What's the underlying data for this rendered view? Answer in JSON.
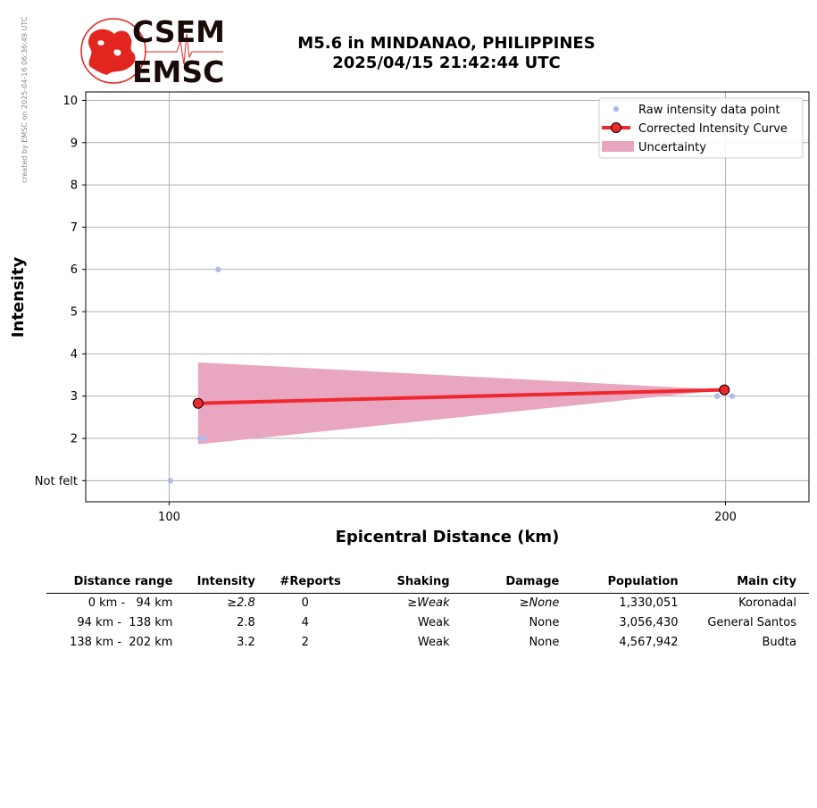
{
  "credit": "created by EMSC on 2025-04-16 06:36:49 UTC",
  "logo": {
    "line1": "CSEM",
    "line2": "EMSC"
  },
  "title": {
    "line1": "M5.6 in MINDANAO, PHILIPPINES",
    "line2": "2025/04/15 21:42:44 UTC"
  },
  "colors": {
    "raw": "#aebde6",
    "curve": "#f0282e",
    "uncertainty": "#e8a6c0",
    "logo": "#e3251f"
  },
  "chart_data": {
    "type": "line",
    "xlabel": "Epicentral Distance (km)",
    "ylabel": "Intensity",
    "xlim": [
      85,
      215
    ],
    "ylim": [
      0.5,
      10.2
    ],
    "xticks": [
      {
        "value": 100,
        "label": "100"
      },
      {
        "value": 200,
        "label": "200"
      }
    ],
    "yticks": [
      {
        "value": 1,
        "label": "Not felt"
      },
      {
        "value": 2,
        "label": "2"
      },
      {
        "value": 3,
        "label": "3"
      },
      {
        "value": 4,
        "label": "4"
      },
      {
        "value": 5,
        "label": "5"
      },
      {
        "value": 6,
        "label": "6"
      },
      {
        "value": 7,
        "label": "7"
      },
      {
        "value": 8,
        "label": "8"
      },
      {
        "value": 9,
        "label": "9"
      },
      {
        "value": 10,
        "label": "10"
      }
    ],
    "grid": true,
    "legend_position": "top-right",
    "raw_points": {
      "name": "Raw intensity data point",
      "x": [
        100.2,
        105.6,
        106.2,
        108.8,
        198.5,
        201.2
      ],
      "y": [
        1,
        2,
        2,
        6,
        3,
        3
      ]
    },
    "curve": {
      "name": "Corrected Intensity Curve",
      "x": [
        105.2,
        199.8
      ],
      "y": [
        2.83,
        3.15
      ]
    },
    "uncertainty": {
      "name": "Uncertainty",
      "x": [
        105.2,
        199.8
      ],
      "upper": [
        3.8,
        3.15
      ],
      "lower": [
        1.86,
        3.15
      ]
    }
  },
  "table": {
    "headers": [
      "Distance range",
      "Intensity",
      "#Reports",
      "Shaking",
      "Damage",
      "Population",
      "Main city"
    ],
    "rows": [
      {
        "range": "0 km -   94 km",
        "intensity": "≥2.8",
        "reports": "0",
        "shaking": "≥Weak",
        "damage": "≥None",
        "population": "1,330,051",
        "city": "Koronadal"
      },
      {
        "range": "94 km -  138 km",
        "intensity": "2.8",
        "reports": "4",
        "shaking": "Weak",
        "damage": "None",
        "population": "3,056,430",
        "city": "General Santos"
      },
      {
        "range": "138 km -  202 km",
        "intensity": "3.2",
        "reports": "2",
        "shaking": "Weak",
        "damage": "None",
        "population": "4,567,942",
        "city": "Budta"
      }
    ]
  }
}
